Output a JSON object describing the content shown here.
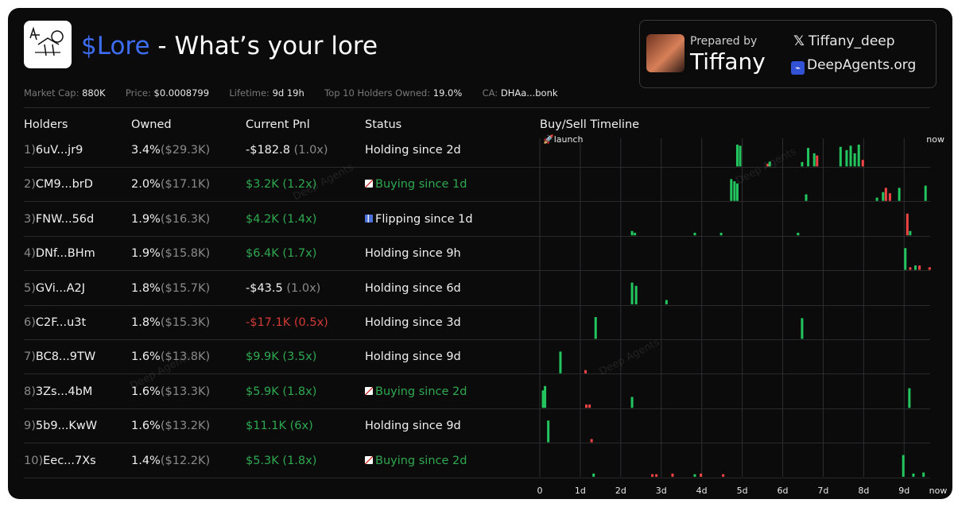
{
  "header": {
    "ticker": "$Lore",
    "subtitle": " - What’s your lore",
    "logo_icon": "stick-figure-drawing-icon"
  },
  "prepared": {
    "label": "Prepared by",
    "name": "Tiffany",
    "avatar": "portrait-avatar",
    "x_handle": "Tiffany_deep",
    "site": "DeepAgents.org",
    "x_icon": "x-logo-icon",
    "site_icon": "deepagents-logo-icon"
  },
  "stats": [
    {
      "label": "Market Cap:",
      "value": "880K"
    },
    {
      "label": "Price:",
      "value": "$0.0008799"
    },
    {
      "label": "Lifetime:",
      "value": "9d 19h"
    },
    {
      "label": "Top 10 Holders Owned:",
      "value": "19.0%"
    },
    {
      "label": "CA:",
      "value": "DHAa...bonk"
    }
  ],
  "columns": {
    "holders": "Holders",
    "owned": "Owned",
    "pnl": "Current Pnl",
    "status": "Status",
    "timeline": "Buy/Sell Timeline"
  },
  "holders": [
    {
      "idx": "1)",
      "addr": "6uV...jr9",
      "pct": "3.4%",
      "usd": "($29.3K)",
      "pnl": "-$182.8",
      "mult": "(1.0x)",
      "pnl_tone": "white",
      "status": "Holding since 2d",
      "status_tone": "white",
      "status_icon": ""
    },
    {
      "idx": "2)",
      "addr": "CM9...brD",
      "pct": "2.0%",
      "usd": "($17.1K)",
      "pnl": "$3.2K",
      "mult": "(1.2x)",
      "pnl_tone": "green",
      "status": "Buying since 1d",
      "status_tone": "green",
      "status_icon": "buy"
    },
    {
      "idx": "3)",
      "addr": "FNW...56d",
      "pct": "1.9%",
      "usd": "($16.3K)",
      "pnl": "$4.2K",
      "mult": "(1.4x)",
      "pnl_tone": "green",
      "status": "Flipping since 1d",
      "status_tone": "white",
      "status_icon": "flip"
    },
    {
      "idx": "4)",
      "addr": "DNf...BHm",
      "pct": "1.9%",
      "usd": "($15.8K)",
      "pnl": "$6.4K",
      "mult": "(1.7x)",
      "pnl_tone": "green",
      "status": "Holding since 9h",
      "status_tone": "white",
      "status_icon": ""
    },
    {
      "idx": "5)",
      "addr": "GVi...A2J",
      "pct": "1.8%",
      "usd": "($15.7K)",
      "pnl": "-$43.5",
      "mult": "(1.0x)",
      "pnl_tone": "white",
      "status": "Holding since 6d",
      "status_tone": "white",
      "status_icon": ""
    },
    {
      "idx": "6)",
      "addr": "C2F...u3t",
      "pct": "1.8%",
      "usd": "($15.3K)",
      "pnl": "-$17.1K",
      "mult": "(0.5x)",
      "pnl_tone": "red",
      "status": "Holding since 3d",
      "status_tone": "white",
      "status_icon": ""
    },
    {
      "idx": "7)",
      "addr": "BC8...9TW",
      "pct": "1.6%",
      "usd": "($13.8K)",
      "pnl": "$9.9K",
      "mult": "(3.5x)",
      "pnl_tone": "green",
      "status": "Holding since 9d",
      "status_tone": "white",
      "status_icon": ""
    },
    {
      "idx": "8)",
      "addr": "3Zs...4bM",
      "pct": "1.6%",
      "usd": "($13.3K)",
      "pnl": "$5.9K",
      "mult": "(1.8x)",
      "pnl_tone": "green",
      "status": "Buying since 2d",
      "status_tone": "green",
      "status_icon": "buy"
    },
    {
      "idx": "9)",
      "addr": "5b9...KwW",
      "pct": "1.6%",
      "usd": "($13.2K)",
      "pnl": "$11.1K",
      "mult": "(6x)",
      "pnl_tone": "green",
      "status": "Holding since 9d",
      "status_tone": "white",
      "status_icon": ""
    },
    {
      "idx": "10)",
      "addr": "Eec...7Xs",
      "pct": "1.4%",
      "usd": "($12.2K)",
      "pnl": "$5.3K",
      "mult": "(1.8x)",
      "pnl_tone": "green",
      "status": "Buying since 2d",
      "status_tone": "green",
      "status_icon": "buy"
    }
  ],
  "watermark": "Deep Agents",
  "chart_data": {
    "type": "bar",
    "title": "Buy/Sell Timeline",
    "x_start_label": "launch",
    "x_end_label": "now",
    "x_ticks": [
      "0",
      "1d",
      "2d",
      "3d",
      "4d",
      "5d",
      "6d",
      "7d",
      "8d",
      "9d",
      "now"
    ],
    "xlim_days": [
      0,
      9.8
    ],
    "colors": {
      "buy": "#22c55e",
      "sell": "#ef4444"
    },
    "y_unit": "relative trade size (0-1)",
    "series": [
      {
        "name": "1) 6uV...jr9",
        "trades": [
          {
            "d": 4.85,
            "s": 1.0,
            "t": "b"
          },
          {
            "d": 4.92,
            "s": 0.95,
            "t": "b"
          },
          {
            "d": 5.6,
            "s": 0.12,
            "t": "s"
          },
          {
            "d": 5.65,
            "s": 0.22,
            "t": "b"
          },
          {
            "d": 6.45,
            "s": 0.2,
            "t": "b"
          },
          {
            "d": 6.6,
            "s": 0.85,
            "t": "b"
          },
          {
            "d": 6.75,
            "s": 0.6,
            "t": "b"
          },
          {
            "d": 6.82,
            "s": 0.5,
            "t": "s"
          },
          {
            "d": 7.4,
            "s": 0.9,
            "t": "b"
          },
          {
            "d": 7.55,
            "s": 0.75,
            "t": "b"
          },
          {
            "d": 7.65,
            "s": 0.95,
            "t": "b"
          },
          {
            "d": 7.75,
            "s": 0.6,
            "t": "b"
          },
          {
            "d": 7.85,
            "s": 1.0,
            "t": "b"
          },
          {
            "d": 7.95,
            "s": 0.3,
            "t": "s"
          }
        ]
      },
      {
        "name": "2) CM9...brD",
        "trades": [
          {
            "d": 4.7,
            "s": 1.0,
            "t": "b"
          },
          {
            "d": 4.78,
            "s": 0.9,
            "t": "b"
          },
          {
            "d": 4.85,
            "s": 0.8,
            "t": "b"
          },
          {
            "d": 6.55,
            "s": 0.3,
            "t": "b"
          },
          {
            "d": 8.3,
            "s": 0.15,
            "t": "b"
          },
          {
            "d": 8.45,
            "s": 0.4,
            "t": "b"
          },
          {
            "d": 8.52,
            "s": 0.6,
            "t": "s"
          },
          {
            "d": 8.62,
            "s": 0.35,
            "t": "s"
          },
          {
            "d": 8.85,
            "s": 0.6,
            "t": "b"
          },
          {
            "d": 9.5,
            "s": 0.7,
            "t": "b"
          }
        ]
      },
      {
        "name": "3) FNW...56d",
        "trades": [
          {
            "d": 2.25,
            "s": 0.2,
            "t": "b"
          },
          {
            "d": 2.32,
            "s": 0.12,
            "t": "b"
          },
          {
            "d": 3.8,
            "s": 0.12,
            "t": "b"
          },
          {
            "d": 4.45,
            "s": 0.12,
            "t": "b"
          },
          {
            "d": 6.35,
            "s": 0.12,
            "t": "b"
          },
          {
            "d": 9.05,
            "s": 1.0,
            "t": "s"
          },
          {
            "d": 9.12,
            "s": 0.2,
            "t": "b"
          }
        ]
      },
      {
        "name": "4) DNf...BHm",
        "trades": [
          {
            "d": 9.0,
            "s": 1.0,
            "t": "b"
          },
          {
            "d": 9.12,
            "s": 0.12,
            "t": "s"
          },
          {
            "d": 9.25,
            "s": 0.2,
            "t": "b"
          },
          {
            "d": 9.35,
            "s": 0.2,
            "t": "s"
          },
          {
            "d": 9.6,
            "s": 0.12,
            "t": "s"
          }
        ]
      },
      {
        "name": "5) GVi...A2J",
        "trades": [
          {
            "d": 2.25,
            "s": 1.0,
            "t": "b"
          },
          {
            "d": 2.35,
            "s": 0.85,
            "t": "b"
          },
          {
            "d": 3.1,
            "s": 0.2,
            "t": "b"
          }
        ]
      },
      {
        "name": "6) C2F...u3t",
        "trades": [
          {
            "d": 1.35,
            "s": 1.0,
            "t": "b"
          },
          {
            "d": 6.45,
            "s": 0.95,
            "t": "b"
          }
        ]
      },
      {
        "name": "7) BC8...9TW",
        "trades": [
          {
            "d": 0.48,
            "s": 1.0,
            "t": "b"
          },
          {
            "d": 1.1,
            "s": 0.15,
            "t": "s"
          }
        ]
      },
      {
        "name": "8) 3Zs...4bM",
        "trades": [
          {
            "d": 0.05,
            "s": 0.8,
            "t": "b"
          },
          {
            "d": 0.1,
            "s": 1.0,
            "t": "b"
          },
          {
            "d": 1.12,
            "s": 0.15,
            "t": "s"
          },
          {
            "d": 1.2,
            "s": 0.15,
            "t": "s"
          },
          {
            "d": 2.25,
            "s": 0.5,
            "t": "b"
          },
          {
            "d": 9.1,
            "s": 0.9,
            "t": "b"
          }
        ]
      },
      {
        "name": "9) 5b9...KwW",
        "trades": [
          {
            "d": 0.18,
            "s": 1.0,
            "t": "b"
          },
          {
            "d": 1.25,
            "s": 0.15,
            "t": "s"
          }
        ]
      },
      {
        "name": "10) Eec...7Xs",
        "trades": [
          {
            "d": 1.3,
            "s": 0.15,
            "t": "b"
          },
          {
            "d": 2.75,
            "s": 0.12,
            "t": "s"
          },
          {
            "d": 2.85,
            "s": 0.12,
            "t": "s"
          },
          {
            "d": 3.25,
            "s": 0.15,
            "t": "s"
          },
          {
            "d": 3.8,
            "s": 0.12,
            "t": "b"
          },
          {
            "d": 3.95,
            "s": 0.15,
            "t": "s"
          },
          {
            "d": 4.5,
            "s": 0.12,
            "t": "s"
          },
          {
            "d": 8.95,
            "s": 1.0,
            "t": "b"
          },
          {
            "d": 9.2,
            "s": 0.15,
            "t": "b"
          },
          {
            "d": 9.45,
            "s": 0.2,
            "t": "b"
          }
        ]
      }
    ]
  }
}
